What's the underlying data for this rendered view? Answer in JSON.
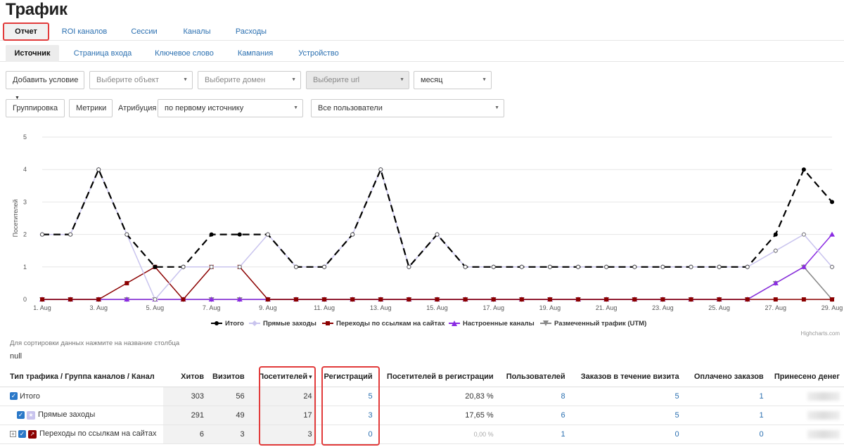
{
  "page_title": "Трафик",
  "tabs_main": [
    {
      "label": "Отчет"
    },
    {
      "label": "ROI каналов"
    },
    {
      "label": "Сессии"
    },
    {
      "label": "Каналы"
    },
    {
      "label": "Расходы"
    }
  ],
  "tabs_sub": [
    {
      "label": "Источник"
    },
    {
      "label": "Страница входа"
    },
    {
      "label": "Ключевое слово"
    },
    {
      "label": "Кампания"
    },
    {
      "label": "Устройство"
    }
  ],
  "filters": {
    "add_condition": "Добавить условие",
    "object_placeholder": "Выберите объект",
    "domain_placeholder": "Выберите домен",
    "url_placeholder": "Выберите url",
    "period_value": "месяц",
    "grouping": "Группировка",
    "metrics": "Метрики",
    "attribution_label": "Атрибуция",
    "attribution_value": "по первому источнику",
    "users_value": "Все пользователи"
  },
  "chart_data": {
    "type": "line",
    "ylabel": "Посетителей",
    "ylim": [
      0,
      5
    ],
    "yticks": [
      "0",
      "1",
      "2",
      "3",
      "4",
      "5"
    ],
    "x": [
      "1. Aug",
      "2. Aug",
      "3. Aug",
      "4. Aug",
      "5. Aug",
      "6. Aug",
      "7. Aug",
      "8. Aug",
      "9. Aug",
      "10. Aug",
      "11. Aug",
      "12. Aug",
      "13. Aug",
      "14. Aug",
      "15. Aug",
      "16. Aug",
      "17. Aug",
      "18. Aug",
      "19. Aug",
      "20. Aug",
      "21. Aug",
      "22. Aug",
      "23. Aug",
      "24. Aug",
      "25. Aug",
      "26. Aug",
      "27. Aug",
      "28. Aug",
      "29. Aug"
    ],
    "xtick_labels": [
      "1. Aug",
      "",
      "3. Aug",
      "",
      "5. Aug",
      "",
      "7. Aug",
      "",
      "9. Aug",
      "",
      "11. Aug",
      "",
      "13. Aug",
      "",
      "15. Aug",
      "",
      "17. Aug",
      "",
      "19. Aug",
      "",
      "21. Aug",
      "",
      "23. Aug",
      "",
      "25. Aug",
      "",
      "27. Aug",
      "",
      "29. Aug"
    ],
    "series": [
      {
        "name": "Итого",
        "color": "#000000",
        "dash": "dash",
        "marker": "circle",
        "values": [
          2,
          2,
          4,
          2,
          1,
          1,
          2,
          2,
          2,
          1,
          1,
          2,
          4,
          1,
          2,
          1,
          1,
          1,
          1,
          1,
          1,
          1,
          1,
          1,
          1,
          1,
          2,
          4,
          3
        ]
      },
      {
        "name": "Прямые заходы",
        "color": "#c9c4ee",
        "dash": "solid",
        "marker": "diamond",
        "values": [
          2,
          2,
          4,
          2,
          0,
          1,
          1,
          1,
          2,
          1,
          1,
          2,
          4,
          1,
          2,
          1,
          1,
          1,
          1,
          1,
          1,
          1,
          1,
          1,
          1,
          1,
          1.5,
          2,
          1
        ]
      },
      {
        "name": "Переходы по ссылкам на сайтах",
        "color": "#8b0000",
        "dash": "solid",
        "marker": "square",
        "values": [
          0,
          0,
          0,
          0.5,
          1,
          0,
          1,
          1,
          0,
          0,
          0,
          0,
          0,
          0,
          0,
          0,
          0,
          0,
          0,
          0,
          0,
          0,
          0,
          0,
          0,
          0,
          0,
          0,
          0
        ]
      },
      {
        "name": "Настроенные каналы",
        "color": "#8a2be2",
        "dash": "solid",
        "marker": "triangle",
        "values": [
          0,
          0,
          0,
          0,
          0,
          0,
          0,
          0,
          0,
          0,
          0,
          0,
          0,
          0,
          0,
          0,
          0,
          0,
          0,
          0,
          0,
          0,
          0,
          0,
          0,
          0,
          0.5,
          1,
          2
        ]
      },
      {
        "name": "Размеченный трафик (UTM)",
        "color": "#888888",
        "dash": "solid",
        "marker": "triangle-down",
        "values": [
          0,
          0,
          0,
          0,
          0,
          0,
          0,
          0,
          0,
          0,
          0,
          0,
          0,
          0,
          0,
          0,
          0,
          0,
          0,
          0,
          0,
          0,
          0,
          0,
          0,
          0,
          0.5,
          1,
          0
        ]
      }
    ],
    "grid": true,
    "legend": "bottom-center"
  },
  "credits": "Highcharts.com",
  "hint": "Для сортировки данных нажмите на название столбца",
  "null_text": "null",
  "table": {
    "headers": [
      "Тип трафика / Группа каналов / Канал",
      "Хитов",
      "Визитов",
      "Посетителей",
      "Регистраций",
      "Посетителей в регистрации",
      "Пользователей",
      "Заказов в течение визита",
      "Оплачено заказов",
      "Принесено денег"
    ],
    "sort_arrow": "▾",
    "rows": [
      {
        "name": "Итого",
        "hits": "303",
        "visits": "56",
        "visitors": "24",
        "regs": "5",
        "conv": "20,83 %",
        "users": "8",
        "orders": "5",
        "paid": "1"
      },
      {
        "name": "Прямые заходы",
        "hits": "291",
        "visits": "49",
        "visitors": "17",
        "regs": "3",
        "conv": "17,65 %",
        "users": "6",
        "orders": "5",
        "paid": "1"
      },
      {
        "name": "Переходы по ссылкам на сайтах",
        "hits": "6",
        "visits": "3",
        "visitors": "3",
        "regs": "0",
        "conv": "0,00 %",
        "users": "1",
        "orders": "0",
        "paid": "0"
      }
    ]
  }
}
